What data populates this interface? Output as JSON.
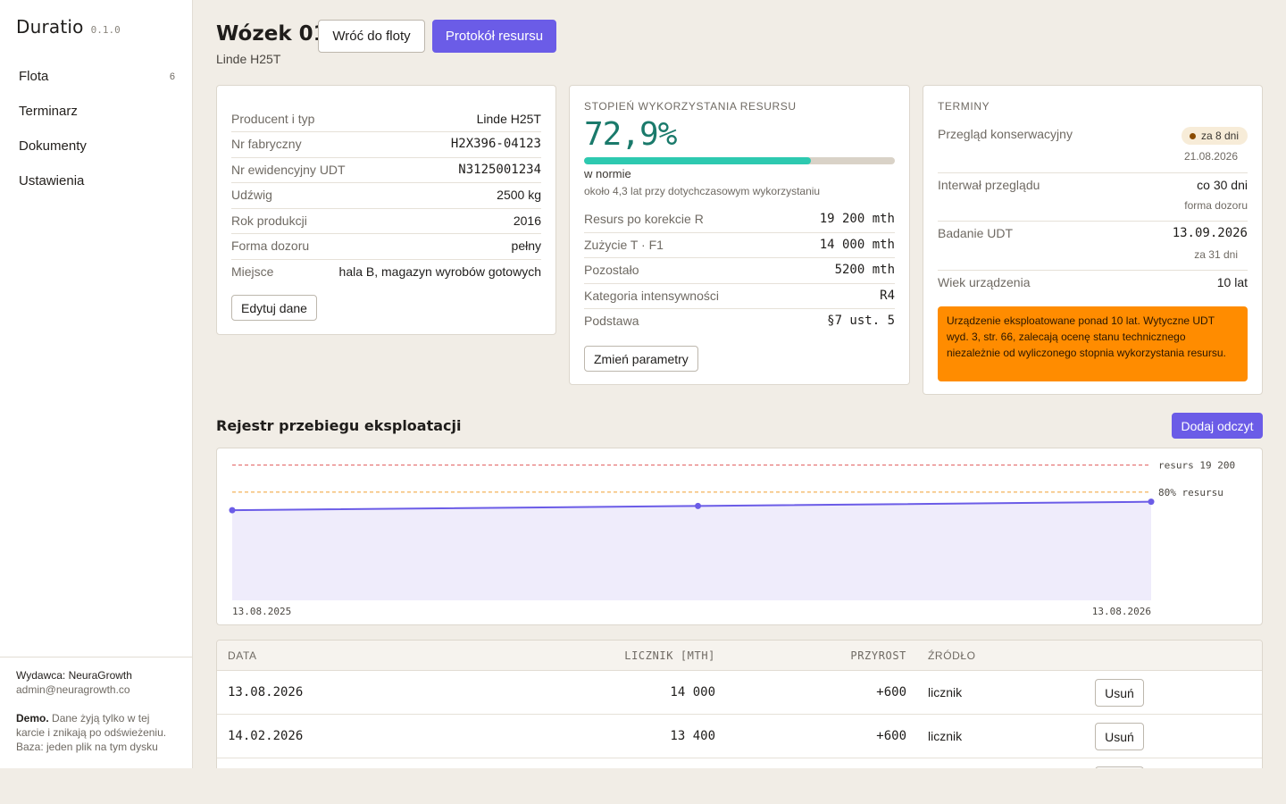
{
  "app": {
    "name": "Duratio",
    "version": "0.1.0"
  },
  "sidebar": {
    "items": [
      {
        "label": "Flota",
        "count": "6"
      },
      {
        "label": "Terminarz"
      },
      {
        "label": "Dokumenty"
      },
      {
        "label": "Ustawienia"
      }
    ],
    "footer": {
      "publisher": "Wydawca: NeuraGrowth",
      "email": "admin@neuragrowth.co",
      "demo_label": "Demo.",
      "demo_text": "Dane żyją tylko w tej karcie i znikają po odświeżeniu.",
      "db_text": "Baza: jeden plik na tym dysku"
    }
  },
  "header": {
    "title": "Wózek 01",
    "subtitle": "Linde H25T",
    "back_button": "Wróć do floty",
    "protocol_button": "Protokół resursu"
  },
  "details": {
    "rows": [
      {
        "key": "Producent i typ",
        "value": "Linde H25T"
      },
      {
        "key": "Nr fabryczny",
        "value": "H2X396-04123"
      },
      {
        "key": "Nr ewidencyjny UDT",
        "value": "N3125001234"
      },
      {
        "key": "Udźwig",
        "value": "2500 kg"
      },
      {
        "key": "Rok produkcji",
        "value": "2016"
      },
      {
        "key": "Forma dozoru",
        "value": "pełny"
      },
      {
        "key": "Miejsce",
        "value": "hala B, magazyn wyrobów gotowych"
      }
    ],
    "edit_button": "Edytuj dane"
  },
  "usage": {
    "label": "Stopień wykorzystania resursu",
    "percent": "72,9%",
    "fill_fraction": 0.729,
    "status": "w normie",
    "status_sub": "około 4,3 lat przy dotychczasowym wykorzystaniu",
    "rows": [
      {
        "key": "Resurs po korekcie R",
        "value": "19 200 mth"
      },
      {
        "key": "Zużycie T · F1",
        "value": "14 000 mth"
      },
      {
        "key": "Pozostało",
        "value": "5200 mth"
      },
      {
        "key": "Kategoria intensywności",
        "value": "R4"
      },
      {
        "key": "Podstawa",
        "value": "§7 ust. 5"
      }
    ],
    "change_button": "Zmień parametry"
  },
  "terms": {
    "label": "Terminy",
    "inspection": {
      "key": "Przegląd konserwacyjny",
      "badge": "za 8 dni",
      "date": "21.08.2026"
    },
    "interval": {
      "key": "Interwał przeglądu",
      "value": "co 30 dni",
      "sub": "forma dozoru"
    },
    "udt": {
      "key": "Badanie UDT",
      "value": "13.09.2026",
      "sub": "za 31 dni"
    },
    "age": {
      "key": "Wiek urządzenia",
      "value": "10 lat"
    },
    "warning": "Urządzenie eksploatowane ponad 10 lat. Wytyczne UDT wyd. 3, str. 66, zalecają ocenę stanu technicznego niezależnie od wyliczonego stopnia wykorzystania resursu.",
    "colors": {
      "warning_bg": "#ff8c00",
      "badge_bg": "#f7ecd8"
    }
  },
  "log": {
    "title": "Rejestr przebiegu eksploatacji",
    "add_button": "Dodaj odczyt",
    "columns": {
      "date": "Data",
      "counter": "Licznik [mth]",
      "increment": "Przyrost",
      "source": "Źródło"
    },
    "rows": [
      {
        "date": "13.08.2026",
        "counter": "14 000",
        "increment": "+600",
        "source": "licznik",
        "action": "Usuń"
      },
      {
        "date": "14.02.2026",
        "counter": "13 400",
        "increment": "+600",
        "source": "licznik",
        "action": "Usuń"
      }
    ]
  },
  "chart_data": {
    "type": "area",
    "x": [
      "13.08.2025",
      "14.02.2026",
      "13.08.2026"
    ],
    "values": [
      12800,
      13400,
      14000
    ],
    "ylim": [
      0,
      20300
    ],
    "x_tick_labels": [
      "13.08.2025",
      "13.08.2026"
    ],
    "reference_lines": [
      {
        "label": "resurs 19 200",
        "value": 19200,
        "color": "#e05a5a"
      },
      {
        "label": "80% resursu",
        "value": 15360,
        "color": "#f0a030"
      }
    ],
    "colors": {
      "line": "#6b5ce7",
      "fill": "#efecfb"
    }
  }
}
